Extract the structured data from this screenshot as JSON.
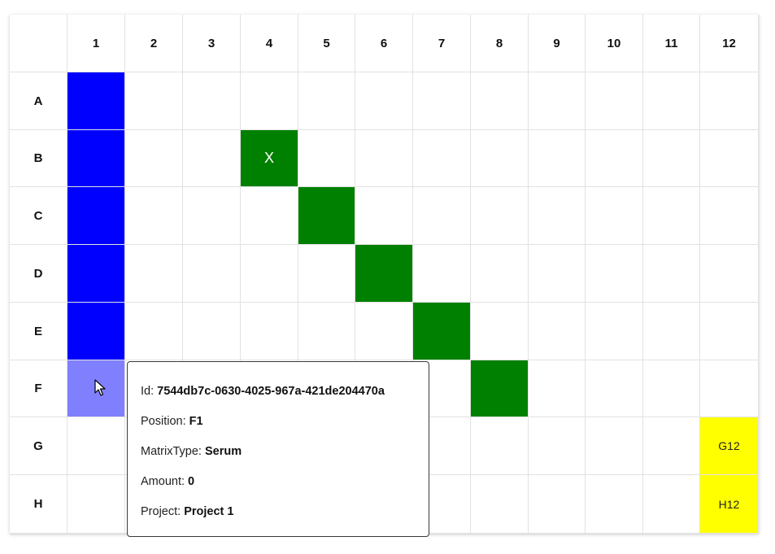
{
  "plate": {
    "columns": [
      "1",
      "2",
      "3",
      "4",
      "5",
      "6",
      "7",
      "8",
      "9",
      "10",
      "11",
      "12"
    ],
    "rows": [
      "A",
      "B",
      "C",
      "D",
      "E",
      "F",
      "G",
      "H"
    ],
    "wells": [
      {
        "row": 0,
        "col": 0,
        "color": "#0000ff",
        "label": ""
      },
      {
        "row": 1,
        "col": 0,
        "color": "#0000ff",
        "label": ""
      },
      {
        "row": 2,
        "col": 0,
        "color": "#0000ff",
        "label": ""
      },
      {
        "row": 3,
        "col": 0,
        "color": "#0000ff",
        "label": ""
      },
      {
        "row": 4,
        "col": 0,
        "color": "#0000ff",
        "label": ""
      },
      {
        "row": 5,
        "col": 0,
        "color": "#8080ff",
        "label": ""
      },
      {
        "row": 1,
        "col": 3,
        "color": "#008000",
        "label": "X"
      },
      {
        "row": 2,
        "col": 4,
        "color": "#008000",
        "label": ""
      },
      {
        "row": 3,
        "col": 5,
        "color": "#008000",
        "label": ""
      },
      {
        "row": 4,
        "col": 6,
        "color": "#008000",
        "label": ""
      },
      {
        "row": 5,
        "col": 7,
        "color": "#008000",
        "label": ""
      },
      {
        "row": 6,
        "col": 11,
        "color": "#ffff00",
        "label": "G12"
      },
      {
        "row": 7,
        "col": 11,
        "color": "#ffff00",
        "label": "H12"
      }
    ]
  },
  "tooltip": {
    "id_label": "Id: ",
    "id_value": "7544db7c-0630-4025-967a-421de204470a",
    "position_label": "Position: ",
    "position_value": "F1",
    "matrix_label": "MatrixType: ",
    "matrix_value": "Serum",
    "amount_label": "Amount: ",
    "amount_value": "0",
    "project_label": "Project: ",
    "project_value": "Project 1"
  }
}
